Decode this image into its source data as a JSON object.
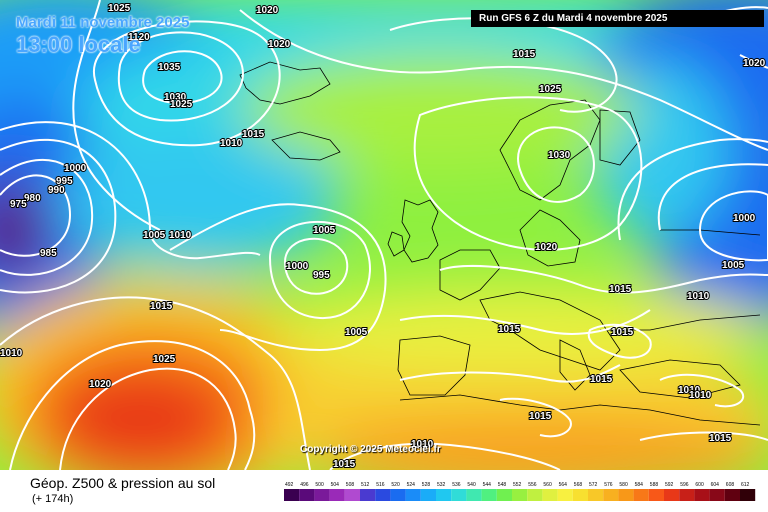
{
  "header": {
    "valid_date": "Mardi 11 novembre 2025",
    "local_time": "13:00 locale",
    "run": "Run GFS 6 Z du Mardi 4 novembre 2025"
  },
  "footer": {
    "title": "Géop. Z500 & pression au sol",
    "lead": "(+ 174h)",
    "copyright": "Copyright © 2025 Meteociel.fr"
  },
  "isobar_labels": [
    "1025",
    "1020",
    "1120",
    "1035",
    "1030",
    "1025",
    "1020",
    "1015",
    "1010",
    "1000",
    "995",
    "990",
    "980",
    "975",
    "985",
    "1005",
    "1010",
    "1015",
    "1025",
    "1020",
    "1010",
    "1005",
    "1000",
    "995",
    "1005",
    "1015",
    "1025",
    "1030",
    "1020",
    "1000",
    "1005",
    "1015",
    "1010",
    "1015",
    "1015",
    "1015",
    "1010",
    "1010",
    "1015",
    "1015",
    "1010",
    "1015",
    "1020"
  ],
  "scale": {
    "ticks": [
      "492",
      "496",
      "500",
      "504",
      "508",
      "512",
      "516",
      "520",
      "524",
      "528",
      "532",
      "536",
      "540",
      "544",
      "548",
      "552",
      "556",
      "560",
      "564",
      "568",
      "572",
      "576",
      "580",
      "584",
      "588",
      "592",
      "596",
      "600",
      "604",
      "608",
      "612"
    ],
    "colors": [
      "#3a0050",
      "#5a0a7a",
      "#7a1a9a",
      "#9a2ab8",
      "#b04ad0",
      "#4a3ad0",
      "#2a4ae0",
      "#1a6cf0",
      "#1a8cf8",
      "#1aacf8",
      "#20c8f0",
      "#30dcd8",
      "#40e8b0",
      "#50f080",
      "#70f050",
      "#98f040",
      "#c0f040",
      "#e0f040",
      "#f8f040",
      "#f8e030",
      "#f8c828",
      "#f8b020",
      "#f89818",
      "#f87818",
      "#f85818",
      "#e83818",
      "#c82018",
      "#a81018",
      "#880818",
      "#600010",
      "#300008"
    ]
  }
}
